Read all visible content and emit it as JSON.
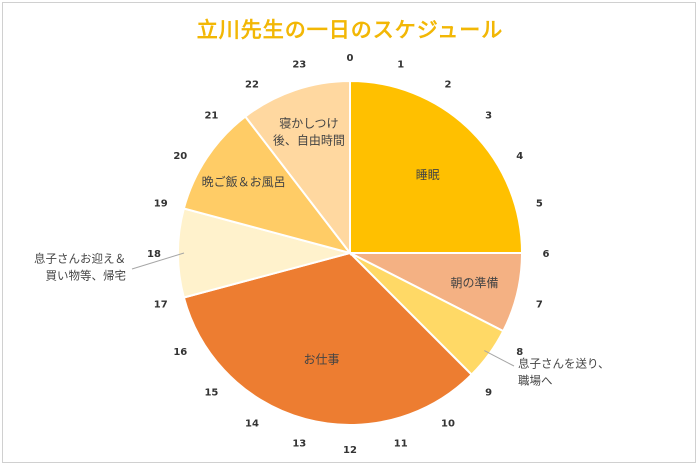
{
  "chart_data": {
    "type": "pie",
    "title": "立川先生の一日のスケジュール",
    "unit": "hours",
    "clock_labels": [
      "0",
      "1",
      "2",
      "3",
      "4",
      "5",
      "6",
      "7",
      "8",
      "9",
      "10",
      "11",
      "12",
      "13",
      "14",
      "15",
      "16",
      "17",
      "18",
      "19",
      "20",
      "21",
      "22",
      "23"
    ],
    "slices": [
      {
        "label": "睡眠",
        "start": 0,
        "end": 6,
        "color": "#ffc000",
        "placement": "inside"
      },
      {
        "label": "朝の準備",
        "start": 6,
        "end": 7.8,
        "color": "#f4b183",
        "placement": "inside"
      },
      {
        "label": [
          "息子さんを送り、",
          "職場へ"
        ],
        "start": 7.8,
        "end": 9,
        "color": "#ffd966",
        "placement": "outside-right"
      },
      {
        "label": "お仕事",
        "start": 9,
        "end": 17,
        "color": "#ed7d31",
        "placement": "inside"
      },
      {
        "label": [
          "息子さんお迎え＆",
          "買い物等、帰宅"
        ],
        "start": 17,
        "end": 19,
        "color": "#fff2cc",
        "placement": "outside-left"
      },
      {
        "label": "晩ご飯＆お風呂",
        "start": 19,
        "end": 21.5,
        "color": "#ffcc66",
        "placement": "inside"
      },
      {
        "label": [
          "寝かしつけ",
          "後、自由時間"
        ],
        "start": 21.5,
        "end": 24,
        "color": "#ffd8a0",
        "placement": "inside"
      }
    ]
  }
}
